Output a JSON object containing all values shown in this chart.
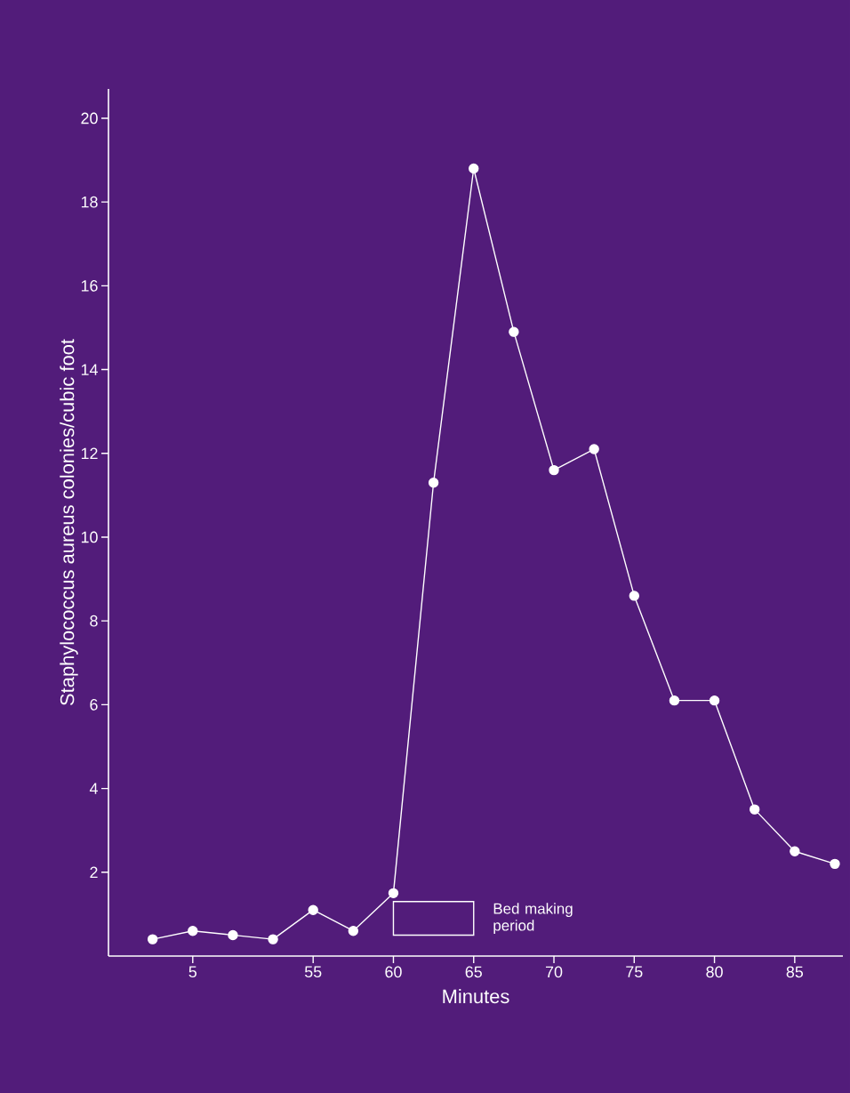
{
  "chart_data": {
    "type": "line",
    "xlabel": "Minutes",
    "ylabel": "Staphylococcus aureus colonies/cubic foot",
    "categories": [
      null,
      "5",
      null,
      null,
      "55",
      null,
      "60",
      null,
      "65",
      null,
      "70",
      null,
      "75",
      null,
      "80",
      null,
      "85",
      null
    ],
    "values": [
      0.4,
      0.6,
      0.5,
      0.4,
      1.1,
      0.6,
      1.5,
      11.3,
      18.8,
      14.9,
      11.6,
      12.1,
      8.6,
      6.1,
      6.1,
      3.5,
      2.5,
      2.2
    ],
    "color": "#ffffff",
    "marker": "circle",
    "line_style": "solid",
    "ylim": [
      0,
      20.7
    ],
    "yticks": [
      2,
      4,
      6,
      8,
      10,
      12,
      14,
      16,
      18,
      20
    ],
    "annotations": [
      "Bed making period"
    ]
  }
}
